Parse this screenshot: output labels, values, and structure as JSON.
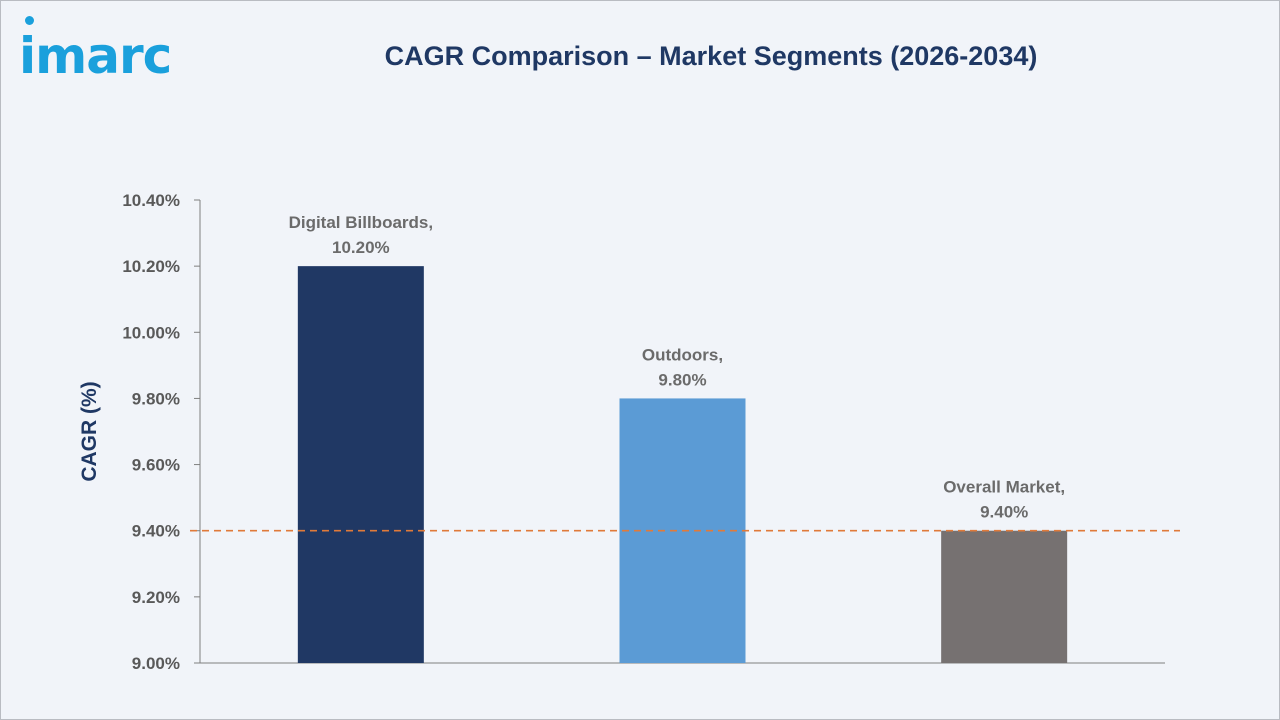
{
  "header": {
    "logo_text": "imarc",
    "title": "CAGR Comparison – Market Segments (2026-2034)"
  },
  "colors": {
    "background": "#f1f4f9",
    "title": "#1f3864",
    "logo": "#1aa0dc",
    "axis": "#7f7f7f",
    "reference_line": "#e07a3a"
  },
  "chart_data": {
    "type": "bar",
    "title": "CAGR Comparison – Market Segments (2026-2034)",
    "xlabel": "",
    "ylabel": "CAGR (%)",
    "ylim": [
      9.0,
      10.4
    ],
    "yticks": [
      9.0,
      9.2,
      9.4,
      9.6,
      9.8,
      10.0,
      10.2,
      10.4
    ],
    "ytick_labels": [
      "9.00%",
      "9.20%",
      "9.40%",
      "9.60%",
      "9.80%",
      "10.00%",
      "10.20%",
      "10.40%"
    ],
    "categories": [
      "Digital Billboards",
      "Outdoors",
      "Overall Market"
    ],
    "values": [
      10.2,
      9.8,
      9.4
    ],
    "data_labels": [
      [
        "Digital Billboards,",
        "10.20%"
      ],
      [
        "Outdoors,",
        "9.80%"
      ],
      [
        "Overall Market,",
        "9.40%"
      ]
    ],
    "bar_colors": [
      "#203864",
      "#5b9bd5",
      "#767171"
    ],
    "reference_line": {
      "value": 9.4,
      "style": "dashed"
    },
    "grid": false,
    "legend": "none"
  }
}
